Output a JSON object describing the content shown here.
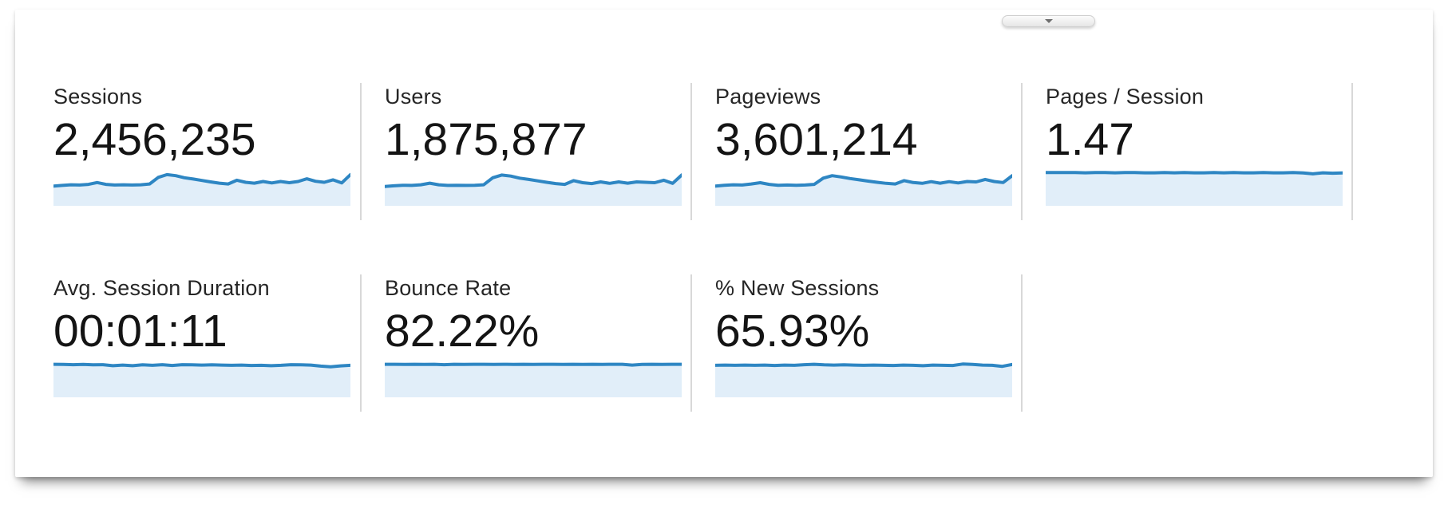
{
  "colors": {
    "sparkline_line": "#2e86c3",
    "sparkline_fill": "#e1eef9",
    "divider": "#d8d8d8",
    "label_text": "#262626",
    "value_text": "#141414"
  },
  "collapse_button": {
    "icon": "chevron-down"
  },
  "sparkline_units": "relative 0-1, no axes or tick labels shown",
  "cards": [
    {
      "id": "sessions",
      "row": 1,
      "label": "Sessions",
      "value": "2,456,235",
      "sparkline": [
        0.3,
        0.33,
        0.36,
        0.35,
        0.38,
        0.47,
        0.38,
        0.35,
        0.36,
        0.35,
        0.36,
        0.4,
        0.72,
        0.85,
        0.8,
        0.7,
        0.64,
        0.57,
        0.5,
        0.44,
        0.4,
        0.58,
        0.48,
        0.44,
        0.52,
        0.45,
        0.52,
        0.46,
        0.52,
        0.65,
        0.53,
        0.48,
        0.6,
        0.45,
        0.85
      ]
    },
    {
      "id": "users",
      "row": 1,
      "label": "Users",
      "value": "1,875,877",
      "sparkline": [
        0.28,
        0.31,
        0.34,
        0.33,
        0.36,
        0.44,
        0.36,
        0.33,
        0.34,
        0.33,
        0.34,
        0.36,
        0.7,
        0.83,
        0.78,
        0.68,
        0.62,
        0.55,
        0.48,
        0.42,
        0.38,
        0.56,
        0.46,
        0.42,
        0.5,
        0.43,
        0.5,
        0.44,
        0.5,
        0.48,
        0.46,
        0.58,
        0.43,
        0.83
      ]
    },
    {
      "id": "pageviews",
      "row": 1,
      "label": "Pageviews",
      "value": "3,601,214",
      "sparkline": [
        0.3,
        0.34,
        0.36,
        0.35,
        0.4,
        0.46,
        0.38,
        0.34,
        0.35,
        0.34,
        0.35,
        0.38,
        0.68,
        0.8,
        0.74,
        0.66,
        0.6,
        0.54,
        0.48,
        0.43,
        0.4,
        0.56,
        0.47,
        0.43,
        0.51,
        0.44,
        0.51,
        0.45,
        0.52,
        0.5,
        0.62,
        0.52,
        0.47,
        0.8
      ]
    },
    {
      "id": "pages-per-session",
      "row": 1,
      "label": "Pages / Session",
      "value": "1.47",
      "sparkline": [
        0.95,
        0.95,
        0.95,
        0.95,
        0.94,
        0.95,
        0.95,
        0.94,
        0.95,
        0.95,
        0.94,
        0.94,
        0.95,
        0.94,
        0.95,
        0.94,
        0.94,
        0.95,
        0.94,
        0.95,
        0.94,
        0.94,
        0.95,
        0.94,
        0.94,
        0.95,
        0.93,
        0.89,
        0.94,
        0.92,
        0.93
      ]
    },
    {
      "id": "avg-session-duration",
      "row": 2,
      "label": "Avg. Session Duration",
      "value": "00:01:11",
      "sparkline": [
        0.94,
        0.93,
        0.92,
        0.93,
        0.91,
        0.92,
        0.87,
        0.9,
        0.87,
        0.91,
        0.89,
        0.92,
        0.88,
        0.92,
        0.91,
        0.9,
        0.91,
        0.9,
        0.89,
        0.9,
        0.88,
        0.89,
        0.87,
        0.89,
        0.92,
        0.91,
        0.9,
        0.85,
        0.82,
        0.86,
        0.89
      ]
    },
    {
      "id": "bounce-rate",
      "row": 2,
      "label": "Bounce Rate",
      "value": "82.22%",
      "sparkline": [
        0.94,
        0.94,
        0.93,
        0.94,
        0.93,
        0.94,
        0.92,
        0.94,
        0.93,
        0.94,
        0.94,
        0.93,
        0.94,
        0.93,
        0.94,
        0.93,
        0.94,
        0.94,
        0.93,
        0.94,
        0.93,
        0.94,
        0.93,
        0.94,
        0.94,
        0.9,
        0.93,
        0.94,
        0.93,
        0.94,
        0.94
      ]
    },
    {
      "id": "new-sessions",
      "row": 2,
      "label": "% New Sessions",
      "value": "65.93%",
      "sparkline": [
        0.89,
        0.9,
        0.89,
        0.9,
        0.89,
        0.9,
        0.88,
        0.9,
        0.89,
        0.92,
        0.94,
        0.91,
        0.9,
        0.91,
        0.9,
        0.89,
        0.9,
        0.89,
        0.88,
        0.9,
        0.89,
        0.87,
        0.9,
        0.89,
        0.88,
        0.95,
        0.93,
        0.9,
        0.89,
        0.84,
        0.93
      ]
    }
  ]
}
